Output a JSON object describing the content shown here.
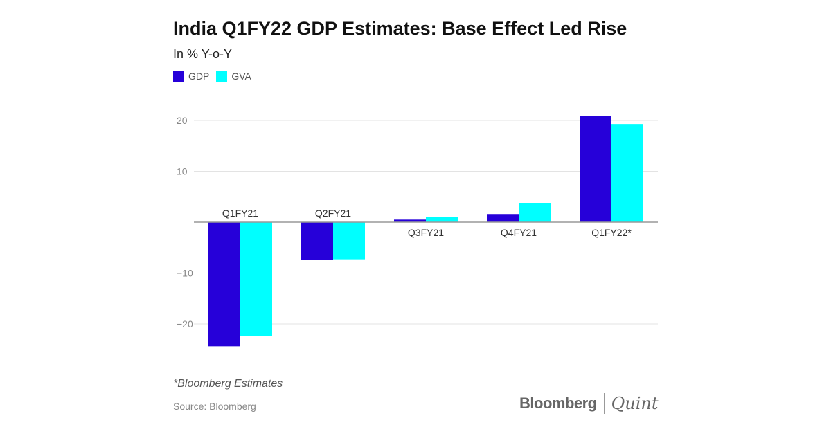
{
  "chart_data": {
    "type": "bar",
    "title": "India Q1FY22 GDP Estimates: Base Effect Led Rise",
    "subtitle": "In % Y-o-Y",
    "categories": [
      "Q1FY21",
      "Q2FY21",
      "Q3FY21",
      "Q4FY21",
      "Q1FY22*"
    ],
    "series": [
      {
        "name": "GDP",
        "color": "#2600d9",
        "values": [
          -24.4,
          -7.4,
          0.5,
          1.6,
          20.9
        ]
      },
      {
        "name": "GVA",
        "color": "#00ffff",
        "values": [
          -22.4,
          -7.3,
          1.0,
          3.7,
          19.3
        ]
      }
    ],
    "yticks": [
      20,
      10,
      -10,
      -20
    ],
    "ytick_labels": [
      "20",
      "10",
      "−10",
      "−20"
    ],
    "ylim": [
      -27,
      25
    ],
    "grid": true,
    "legend": "top-left",
    "xlabel": "",
    "ylabel": ""
  },
  "footnote": "*Bloomberg Estimates",
  "source": "Source: Bloomberg",
  "logo": {
    "left": "Bloomberg",
    "right": "Quint"
  }
}
